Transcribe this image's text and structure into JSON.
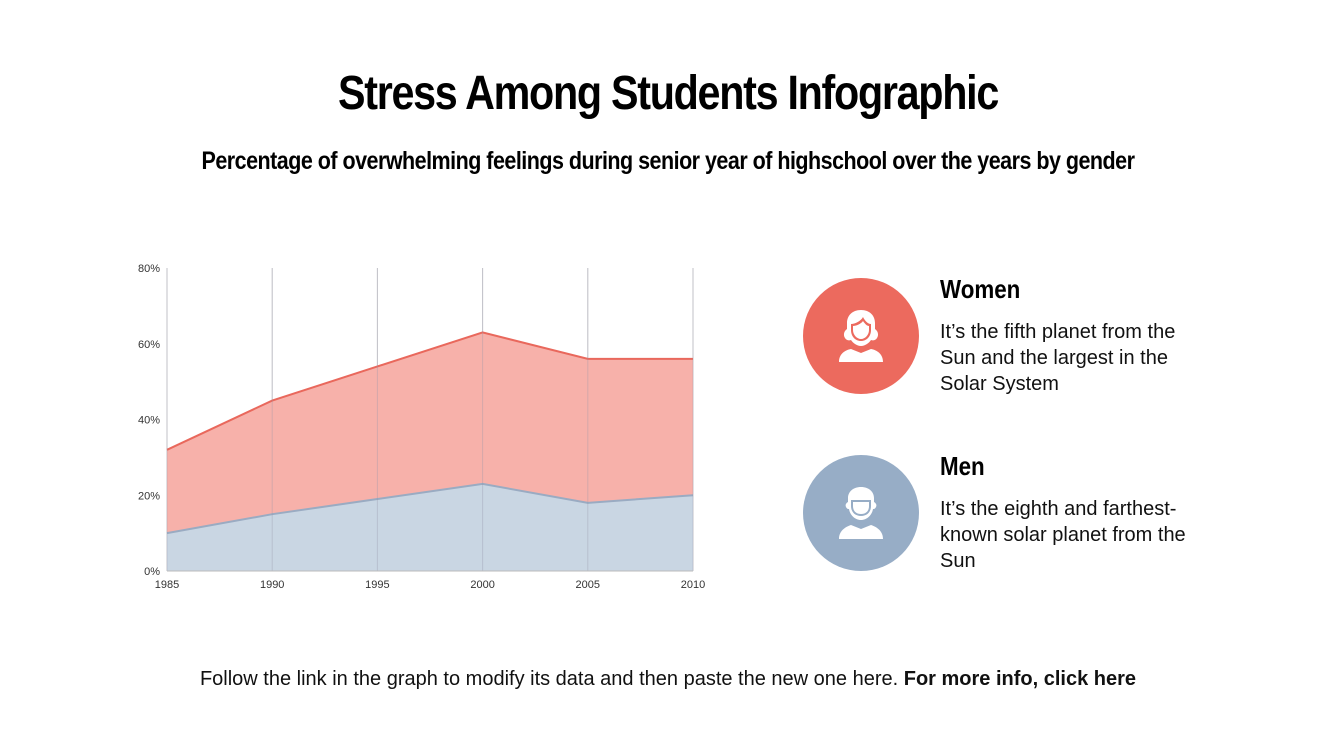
{
  "title": "Stress Among Students Infographic",
  "subtitle": "Percentage of overwhelming feelings during senior year of highschool over the years by gender",
  "chart_data": {
    "type": "area",
    "x": [
      1985,
      1990,
      1995,
      2000,
      2005,
      2010
    ],
    "x_tick_labels": [
      "1985",
      "1990",
      "1995",
      "2000",
      "2005",
      "2010"
    ],
    "y_tick_labels": [
      "0%",
      "20%",
      "40%",
      "60%",
      "80%"
    ],
    "ylim": [
      0,
      80
    ],
    "grid": "vertical",
    "series": [
      {
        "name": "Women",
        "values": [
          32,
          45,
          54,
          63,
          56,
          56
        ],
        "color": "#f7b1aa",
        "line_color": "#e9685c"
      },
      {
        "name": "Men",
        "values": [
          10,
          15,
          19,
          23,
          18,
          20
        ],
        "color": "#c9d6e3",
        "line_color": "#9aabc2"
      }
    ]
  },
  "legend": {
    "women": {
      "label": "Women",
      "description": "It’s the fifth planet from the Sun and the largest in the Solar System",
      "icon": "woman-icon",
      "color": "#ec6a5e"
    },
    "men": {
      "label": "Men",
      "description": "It’s the eighth and farthest-known solar planet from the Sun",
      "icon": "man-icon",
      "color": "#97adc6"
    }
  },
  "footer": {
    "text": "Follow the link in the graph to modify its data and then paste the new one here.",
    "link": "For more info, click here"
  }
}
